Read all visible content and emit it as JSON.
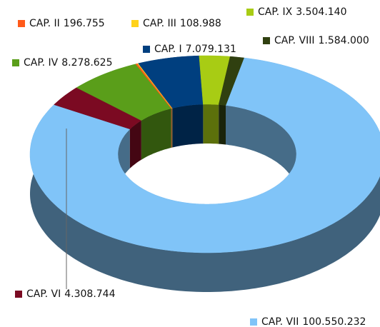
{
  "chart_data": {
    "type": "donut3d",
    "categories": [
      "CAP. VII",
      "CAP. VI",
      "CAP. IV",
      "CAP. II",
      "CAP. III",
      "CAP. I",
      "CAP. IX",
      "CAP. VIII"
    ],
    "values": [
      100550232,
      4308744,
      8278625,
      196755,
      108988,
      7079131,
      3504140,
      1584000
    ],
    "value_labels": [
      "100.550.232",
      "4.308.744",
      "8.278.625",
      "196.755",
      "108.988",
      "7.079.131",
      "3.504.140",
      "1.584.000"
    ],
    "colors": [
      "#80c4f8",
      "#7b0a22",
      "#5a9e1a",
      "#ff5a1a",
      "#ffd21a",
      "#003f7f",
      "#a8cc14",
      "#304010"
    ]
  }
}
